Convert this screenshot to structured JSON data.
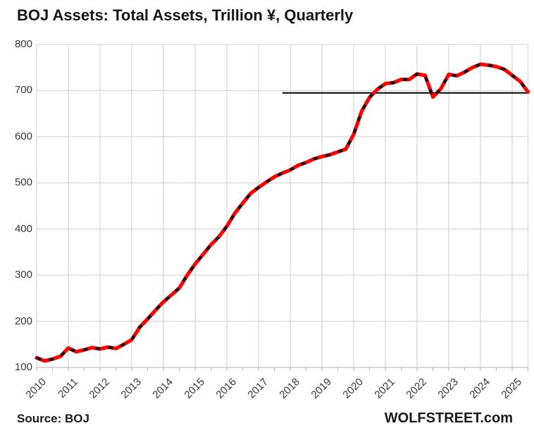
{
  "title": "BOJ Assets: Total Assets, Trillion ¥, Quarterly",
  "source_label": "Source: BOJ",
  "brand": "WOLFSTREET.com",
  "colors": {
    "line_red": "#fe0000",
    "dash_black": "#141414",
    "grid": "#d9d9d9",
    "axis_line": "#bfbfbf",
    "tick": "#bfbfbf",
    "reference_line": "#000000",
    "axis_text": "#363636",
    "title_text": "#161616"
  },
  "chart_data": {
    "type": "line",
    "title": "BOJ Assets: Total Assets, Trillion ¥, Quarterly",
    "xlabel": "",
    "ylabel": "Trillion ¥",
    "ylim": [
      100,
      800
    ],
    "yticks": [
      100,
      200,
      300,
      400,
      500,
      600,
      700,
      800
    ],
    "year_ticks": [
      "2010",
      "2011",
      "2012",
      "2013",
      "2014",
      "2015",
      "2016",
      "2017",
      "2018",
      "2019",
      "2020",
      "2021",
      "2022",
      "2023",
      "2024",
      "2025"
    ],
    "grid": true,
    "legend_position": "none",
    "line_style": "red solid with black dash overlay",
    "x": [
      "2010Q1",
      "2010Q2",
      "2010Q3",
      "2010Q4",
      "2011Q1",
      "2011Q2",
      "2011Q3",
      "2011Q4",
      "2012Q1",
      "2012Q2",
      "2012Q3",
      "2012Q4",
      "2013Q1",
      "2013Q2",
      "2013Q3",
      "2013Q4",
      "2014Q1",
      "2014Q2",
      "2014Q3",
      "2014Q4",
      "2015Q1",
      "2015Q2",
      "2015Q3",
      "2015Q4",
      "2016Q1",
      "2016Q2",
      "2016Q3",
      "2016Q4",
      "2017Q1",
      "2017Q2",
      "2017Q3",
      "2017Q4",
      "2018Q1",
      "2018Q2",
      "2018Q3",
      "2018Q4",
      "2019Q1",
      "2019Q2",
      "2019Q3",
      "2019Q4",
      "2020Q1",
      "2020Q2",
      "2020Q3",
      "2020Q4",
      "2021Q1",
      "2021Q2",
      "2021Q3",
      "2021Q4",
      "2022Q1",
      "2022Q2",
      "2022Q3",
      "2022Q4",
      "2023Q1",
      "2023Q2",
      "2023Q3",
      "2023Q4",
      "2024Q1",
      "2024Q2",
      "2024Q3",
      "2024Q4",
      "2025Q1",
      "2025Q2",
      "2025Q3"
    ],
    "series": [
      {
        "name": "BOJ total assets, trillion yen",
        "values": [
          121,
          114,
          118,
          124,
          142,
          134,
          138,
          143,
          140,
          144,
          141,
          150,
          160,
          187,
          205,
          224,
          242,
          257,
          272,
          300,
          324,
          345,
          366,
          383,
          406,
          434,
          456,
          477,
          490,
          502,
          513,
          521,
          528,
          538,
          544,
          552,
          557,
          561,
          567,
          573,
          605,
          655,
          685,
          703,
          715,
          717,
          724,
          724,
          736,
          733,
          686,
          704,
          735,
          732,
          740,
          750,
          757,
          755,
          752,
          746,
          733,
          720,
          697
        ]
      }
    ],
    "reference_line": {
      "value": 695,
      "start_quarter": "2017Q4",
      "end_quarter": "2025Q3",
      "description": "horizontal level marker at current asset level"
    }
  }
}
